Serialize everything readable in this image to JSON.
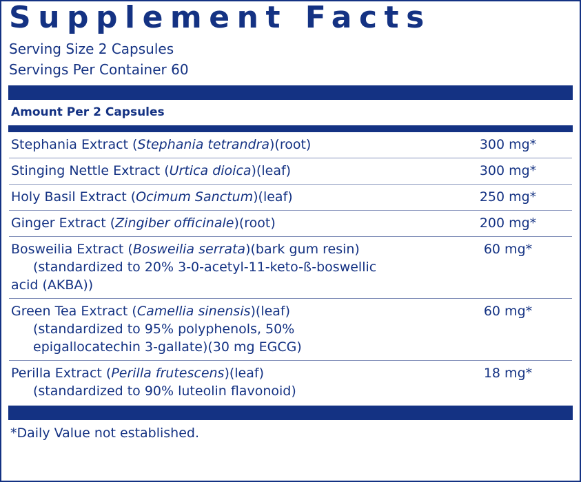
{
  "title": "Supplement Facts",
  "serving_size": "Serving Size 2 Capsules",
  "servings_per_container": "Servings Per Container 60",
  "amount_header": "Amount Per 2 Capsules",
  "ingredients": [
    {
      "name": "Stephania Extract (",
      "latin": "Stephania tetrandra",
      "part": ")(root)",
      "amount": "300 mg*"
    },
    {
      "name": "Stinging Nettle Extract (",
      "latin": "Urtica dioica",
      "part": ")(leaf)",
      "amount": "300 mg*"
    },
    {
      "name": "Holy Basil Extract (",
      "latin": "Ocimum Sanctum",
      "part": ")(leaf)",
      "amount": "250 mg*"
    },
    {
      "name": "Ginger Extract (",
      "latin": "Zingiber officinale",
      "part": ")(root)",
      "amount": "200 mg*"
    },
    {
      "name": "Bosweilia Extract (",
      "latin": "Bosweilia serrata",
      "part": ")(bark gum resin)",
      "sub1": "(standardized to 20% 3-0-acetyl-11-keto-ß-boswellic",
      "sub2": "acid (AKBA))",
      "amount": "60 mg*"
    },
    {
      "name": "Green Tea Extract (",
      "latin": "Camellia sinensis",
      "part": ")(leaf)",
      "sub1": "(standardized to 95% polyphenols, 50%",
      "sub2": "epigallocatechin 3-gallate)(30 mg EGCG)",
      "amount": "60 mg*"
    },
    {
      "name": "Perilla Extract (",
      "latin": "Perilla frutescens",
      "part": ")(leaf)",
      "sub1": "(standardized to 90% luteolin flavonoid)",
      "amount": "18 mg*"
    }
  ],
  "footnote": "*Daily Value not established.",
  "colors": {
    "navy": "#143283",
    "rule": "#8592bb"
  }
}
